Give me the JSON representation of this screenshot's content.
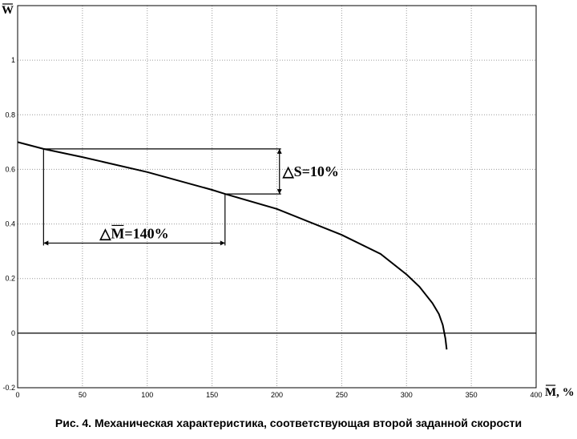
{
  "chart_data": {
    "type": "line",
    "ylabel": "W",
    "xlabel": "M, %",
    "xlim": [
      0,
      400
    ],
    "ylim": [
      -0.2,
      1.2
    ],
    "xticks": [
      0,
      50,
      100,
      150,
      200,
      250,
      300,
      350,
      400
    ],
    "yticks": [
      -0.2,
      0,
      0.2,
      0.4,
      0.6,
      0.8,
      1
    ],
    "grid": true,
    "series": [
      {
        "x": [
          0,
          20,
          50,
          100,
          150,
          160,
          200,
          250,
          280,
          300,
          310,
          320,
          325,
          328,
          330,
          331
        ],
        "y": [
          0.7,
          0.675,
          0.645,
          0.59,
          0.525,
          0.51,
          0.455,
          0.36,
          0.29,
          0.215,
          0.17,
          0.11,
          0.07,
          0.03,
          -0.02,
          -0.06
        ]
      }
    ],
    "annotations": [
      {
        "text": "△S=10%",
        "type": "vertical-bracket",
        "x": 202,
        "y_from": 0.51,
        "y_to": 0.675
      },
      {
        "text": "△M=140%",
        "type": "horizontal-bracket",
        "y": 0.33,
        "x_from": 20,
        "x_to": 160
      }
    ]
  },
  "caption": "Рис. 4. Механическая характеристика, соответствующая второй заданной скорости"
}
